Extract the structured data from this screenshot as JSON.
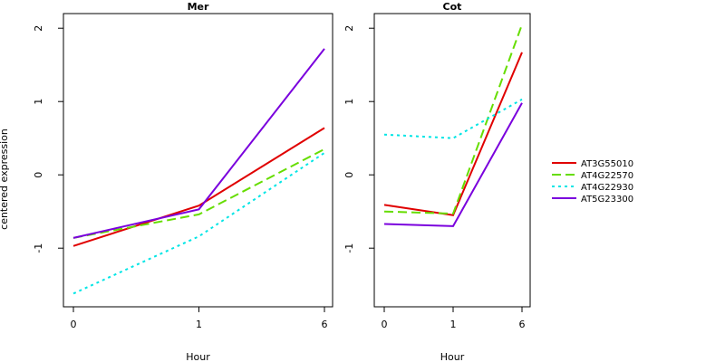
{
  "chart_data": {
    "type": "line",
    "ylabel": "centered expression",
    "xlabel": "Hour",
    "x": [
      "0",
      "1",
      "6"
    ],
    "ylim": [
      -1.8,
      2.2
    ],
    "yticks": [
      -1,
      0,
      1,
      2
    ],
    "legend_position": "right",
    "legend": [
      {
        "name": "AT3G55010",
        "color": "#e00000",
        "dash": "solid"
      },
      {
        "name": "AT4G22570",
        "color": "#66dd00",
        "dash": "dashed"
      },
      {
        "name": "AT4G22930",
        "color": "#00e5e5",
        "dash": "dotted"
      },
      {
        "name": "AT5G23300",
        "color": "#7a00dd",
        "dash": "solid"
      }
    ],
    "panels": [
      {
        "title": "Mer",
        "series": [
          {
            "name": "AT3G55010",
            "values": [
              -0.97,
              -0.42,
              0.64
            ]
          },
          {
            "name": "AT4G22570",
            "values": [
              -0.86,
              -0.54,
              0.35
            ]
          },
          {
            "name": "AT4G22930",
            "values": [
              -1.62,
              -0.84,
              0.3
            ]
          },
          {
            "name": "AT5G23300",
            "values": [
              -0.86,
              -0.47,
              1.72
            ]
          }
        ]
      },
      {
        "title": "Cot",
        "series": [
          {
            "name": "AT3G55010",
            "values": [
              -0.41,
              -0.55,
              1.67
            ]
          },
          {
            "name": "AT4G22570",
            "values": [
              -0.5,
              -0.53,
              2.05
            ]
          },
          {
            "name": "AT4G22930",
            "values": [
              0.55,
              0.5,
              1.03
            ]
          },
          {
            "name": "AT5G23300",
            "values": [
              -0.67,
              -0.7,
              0.98
            ]
          }
        ]
      }
    ]
  }
}
